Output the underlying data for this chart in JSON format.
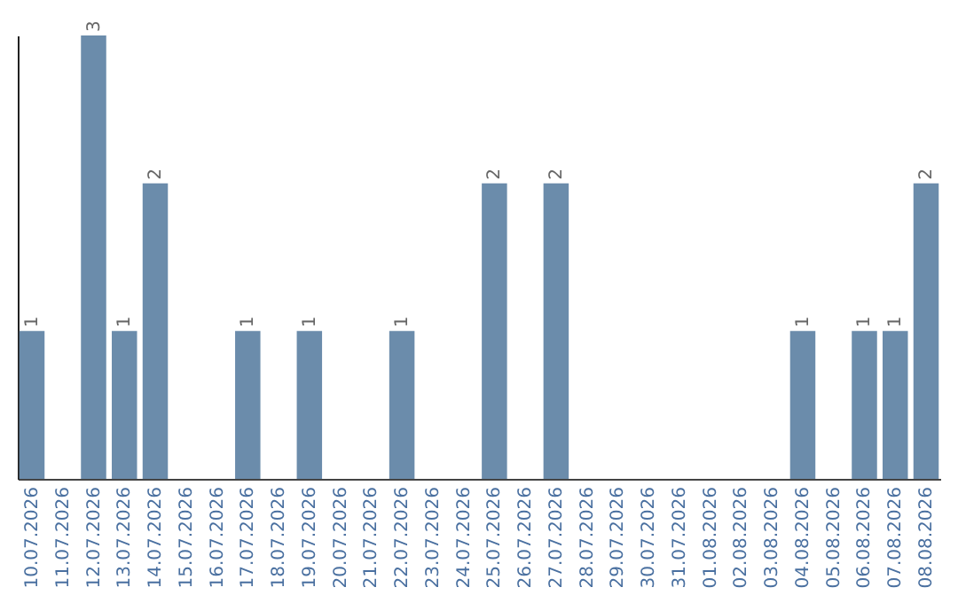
{
  "chart_data": {
    "type": "bar",
    "categories": [
      "10.07.2026",
      "11.07.2026",
      "12.07.2026",
      "13.07.2026",
      "14.07.2026",
      "15.07.2026",
      "16.07.2026",
      "17.07.2026",
      "18.07.2026",
      "19.07.2026",
      "20.07.2026",
      "21.07.2026",
      "22.07.2026",
      "23.07.2026",
      "24.07.2026",
      "25.07.2026",
      "26.07.2026",
      "27.07.2026",
      "28.07.2026",
      "29.07.2026",
      "30.07.2026",
      "31.07.2026",
      "01.08.2026",
      "02.08.2026",
      "03.08.2026",
      "04.08.2026",
      "05.08.2026",
      "06.08.2026",
      "07.08.2026",
      "08.08.2026"
    ],
    "values": [
      1,
      0,
      3,
      1,
      2,
      0,
      0,
      1,
      0,
      1,
      0,
      0,
      1,
      0,
      0,
      2,
      0,
      2,
      0,
      0,
      0,
      0,
      0,
      0,
      0,
      1,
      0,
      1,
      1,
      2
    ],
    "value_labels": [
      "1",
      null,
      "3",
      "1",
      "2",
      null,
      null,
      "1",
      null,
      "1",
      null,
      null,
      "1",
      null,
      null,
      "2",
      null,
      "2",
      null,
      null,
      null,
      null,
      null,
      null,
      null,
      "1",
      null,
      "1",
      "1",
      "2"
    ],
    "color": "#6b8cab",
    "tick_labels": "x"
  }
}
